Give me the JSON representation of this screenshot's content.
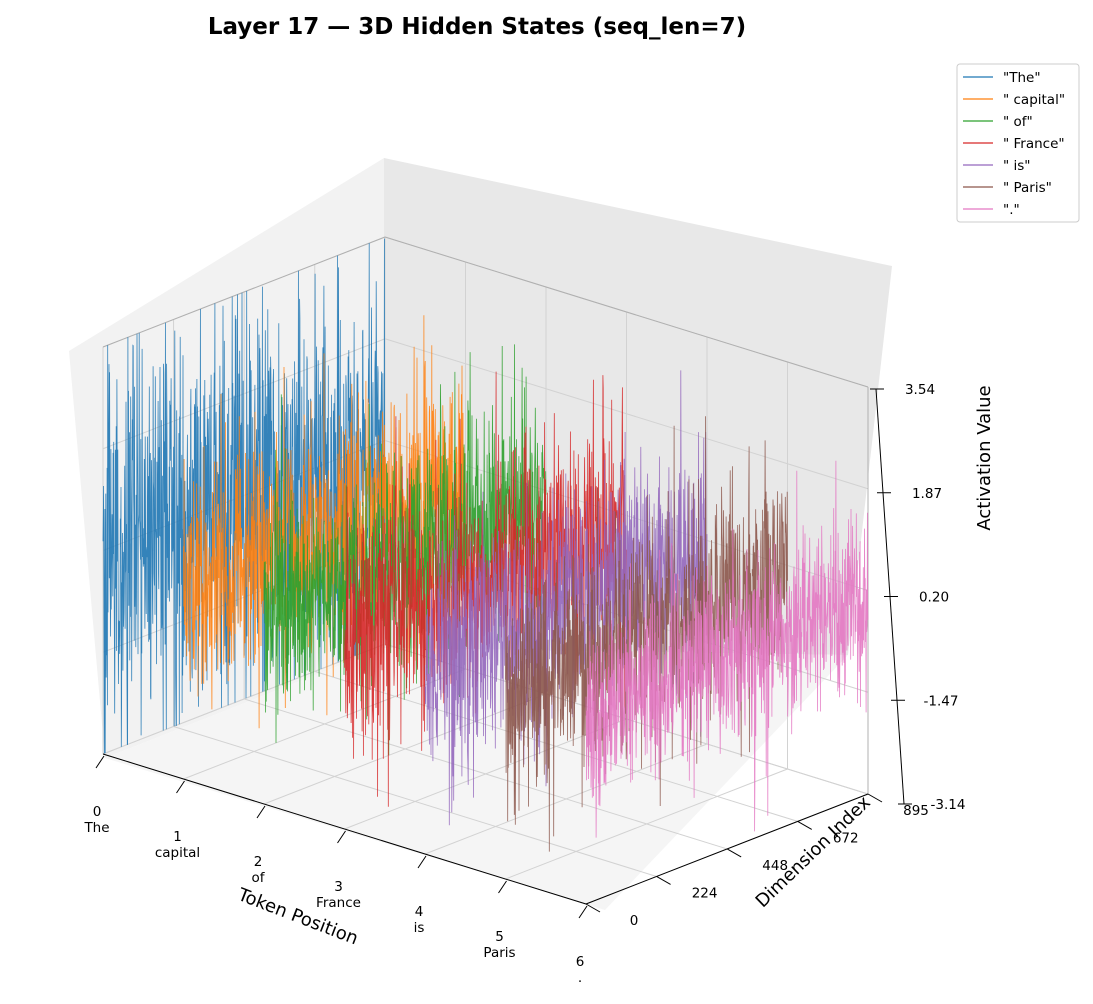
{
  "chart_data": {
    "type": "line3d",
    "title": "Layer 17 — 3D Hidden States (seq_len=7)",
    "xlabel": "Token Position",
    "ylabel": "Dimension Index",
    "zlabel": "Activation Value",
    "x_ticks": [
      {
        "value": 0,
        "label": "0",
        "token": "The"
      },
      {
        "value": 1,
        "label": "1",
        "token": "capital"
      },
      {
        "value": 2,
        "label": "2",
        "token": "of"
      },
      {
        "value": 3,
        "label": "3",
        "token": "France"
      },
      {
        "value": 4,
        "label": "4",
        "token": "is"
      },
      {
        "value": 5,
        "label": "5",
        "token": "Paris"
      },
      {
        "value": 6,
        "label": "6",
        "token": "."
      }
    ],
    "y_ticks": [
      "0",
      "224",
      "448",
      "672",
      "895"
    ],
    "y_tick_values": [
      0,
      224,
      448,
      672,
      895
    ],
    "z_ticks": [
      "-3.14",
      "-1.47",
      "0.20",
      "1.87",
      "3.54"
    ],
    "z_tick_values": [
      -3.14,
      -1.47,
      0.2,
      1.87,
      3.54
    ],
    "xlim": [
      0,
      6
    ],
    "ylim": [
      0,
      895
    ],
    "zlim": [
      -3.14,
      3.54
    ],
    "grid": true,
    "legend_position": "top-right",
    "series": [
      {
        "name": "\"The\"",
        "token_position": 0,
        "color": "#1f77b4",
        "std": 1.6,
        "points": 896
      },
      {
        "name": "\" capital\"",
        "token_position": 1,
        "color": "#ff7f0e",
        "std": 0.9,
        "points": 896
      },
      {
        "name": "\" of\"",
        "token_position": 2,
        "color": "#2ca02c",
        "std": 0.9,
        "points": 896
      },
      {
        "name": "\" France\"",
        "token_position": 3,
        "color": "#d62728",
        "std": 1.0,
        "points": 896
      },
      {
        "name": "\" is\"",
        "token_position": 4,
        "color": "#9467bd",
        "std": 0.9,
        "points": 896
      },
      {
        "name": "\" Paris\"",
        "token_position": 5,
        "color": "#8c564b",
        "std": 0.9,
        "points": 896
      },
      {
        "name": "\".\"",
        "token_position": 6,
        "color": "#e377c2",
        "std": 0.75,
        "points": 896
      }
    ]
  }
}
